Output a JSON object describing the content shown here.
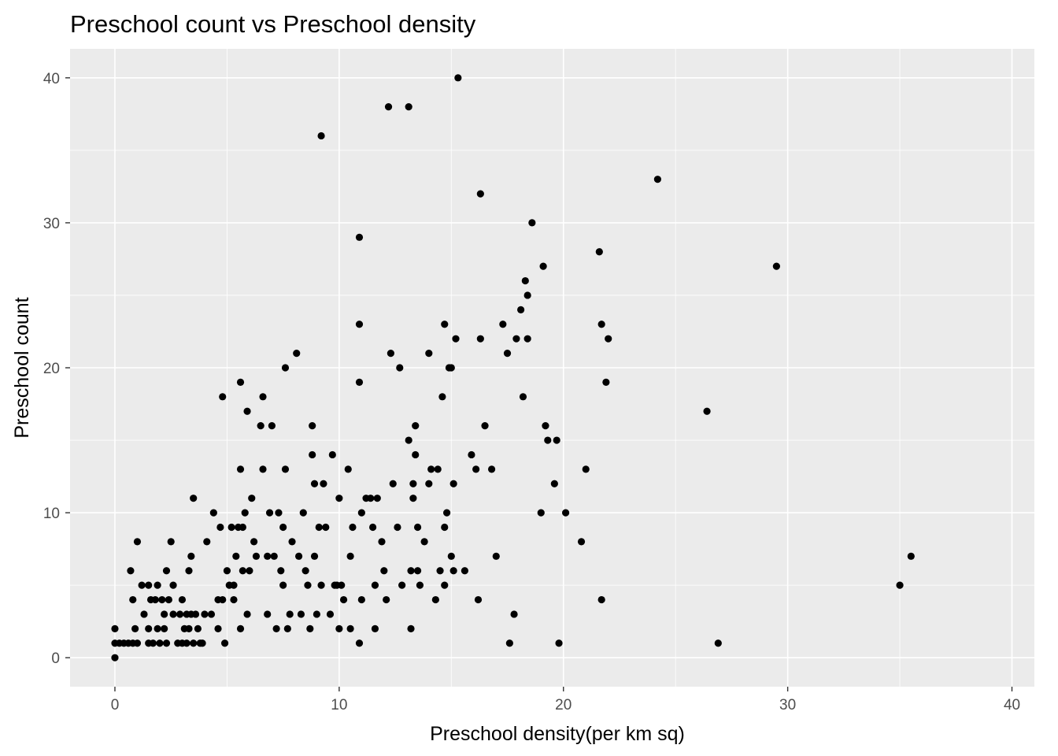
{
  "chart_data": {
    "type": "scatter",
    "title": "Preschool count vs Preschool density",
    "xlabel": "Preschool density(per km sq)",
    "ylabel": "Preschool count",
    "xlim": [
      -2,
      41
    ],
    "ylim": [
      -2,
      42
    ],
    "x_ticks": [
      0,
      10,
      20,
      30,
      40
    ],
    "y_ticks": [
      0,
      10,
      20,
      30,
      40
    ],
    "x_tick_labels": [
      "0",
      "10",
      "20",
      "30",
      "40"
    ],
    "y_tick_labels": [
      "0",
      "10",
      "20",
      "30",
      "40"
    ],
    "grid": true,
    "legend": "none",
    "background_color": "#ebebeb",
    "point_color": "#000000",
    "points": [
      [
        0.0,
        0
      ],
      [
        0.0,
        1
      ],
      [
        0.0,
        2
      ],
      [
        0.2,
        1
      ],
      [
        0.4,
        1
      ],
      [
        0.6,
        1
      ],
      [
        0.8,
        1
      ],
      [
        0.7,
        6
      ],
      [
        0.8,
        4
      ],
      [
        0.9,
        2
      ],
      [
        1.0,
        1
      ],
      [
        1.0,
        8
      ],
      [
        1.2,
        5
      ],
      [
        1.3,
        3
      ],
      [
        1.5,
        5
      ],
      [
        1.5,
        1
      ],
      [
        1.5,
        2
      ],
      [
        1.6,
        4
      ],
      [
        1.7,
        1
      ],
      [
        1.8,
        4
      ],
      [
        1.9,
        2
      ],
      [
        1.9,
        5
      ],
      [
        2.0,
        1
      ],
      [
        2.1,
        4
      ],
      [
        2.2,
        3
      ],
      [
        2.2,
        2
      ],
      [
        2.3,
        1
      ],
      [
        2.3,
        6
      ],
      [
        2.4,
        4
      ],
      [
        2.5,
        8
      ],
      [
        2.6,
        3
      ],
      [
        2.6,
        5
      ],
      [
        2.8,
        1
      ],
      [
        2.9,
        3
      ],
      [
        3.0,
        4
      ],
      [
        3.0,
        1
      ],
      [
        3.1,
        2
      ],
      [
        3.2,
        1
      ],
      [
        3.2,
        3
      ],
      [
        3.3,
        6
      ],
      [
        3.3,
        2
      ],
      [
        3.4,
        3
      ],
      [
        3.4,
        7
      ],
      [
        3.5,
        11
      ],
      [
        3.5,
        1
      ],
      [
        3.6,
        3
      ],
      [
        3.7,
        2
      ],
      [
        3.8,
        1
      ],
      [
        3.9,
        1
      ],
      [
        4.0,
        3
      ],
      [
        4.1,
        8
      ],
      [
        4.3,
        3
      ],
      [
        4.4,
        10
      ],
      [
        4.6,
        4
      ],
      [
        4.6,
        2
      ],
      [
        4.7,
        9
      ],
      [
        4.8,
        18
      ],
      [
        4.8,
        4
      ],
      [
        4.9,
        1
      ],
      [
        5.0,
        6
      ],
      [
        5.1,
        5
      ],
      [
        5.2,
        9
      ],
      [
        5.3,
        4
      ],
      [
        5.3,
        5
      ],
      [
        5.4,
        7
      ],
      [
        5.5,
        9
      ],
      [
        5.6,
        19
      ],
      [
        5.6,
        13
      ],
      [
        5.7,
        6
      ],
      [
        5.7,
        9
      ],
      [
        5.6,
        2
      ],
      [
        5.8,
        10
      ],
      [
        5.9,
        17
      ],
      [
        5.9,
        3
      ],
      [
        6.0,
        6
      ],
      [
        6.1,
        11
      ],
      [
        6.2,
        8
      ],
      [
        6.3,
        7
      ],
      [
        6.5,
        16
      ],
      [
        6.6,
        13
      ],
      [
        6.6,
        18
      ],
      [
        6.8,
        3
      ],
      [
        6.8,
        7
      ],
      [
        6.9,
        10
      ],
      [
        7.0,
        16
      ],
      [
        7.1,
        7
      ],
      [
        7.2,
        2
      ],
      [
        7.3,
        10
      ],
      [
        7.4,
        6
      ],
      [
        7.5,
        5
      ],
      [
        7.5,
        9
      ],
      [
        7.6,
        20
      ],
      [
        7.6,
        13
      ],
      [
        7.7,
        2
      ],
      [
        7.8,
        3
      ],
      [
        7.9,
        8
      ],
      [
        8.1,
        21
      ],
      [
        8.2,
        7
      ],
      [
        8.3,
        3
      ],
      [
        8.4,
        10
      ],
      [
        8.5,
        6
      ],
      [
        8.6,
        5
      ],
      [
        8.7,
        2
      ],
      [
        8.8,
        14
      ],
      [
        8.8,
        16
      ],
      [
        8.9,
        12
      ],
      [
        8.9,
        7
      ],
      [
        9.0,
        3
      ],
      [
        9.1,
        9
      ],
      [
        9.2,
        36
      ],
      [
        9.2,
        5
      ],
      [
        9.3,
        12
      ],
      [
        9.4,
        9
      ],
      [
        9.6,
        3
      ],
      [
        9.7,
        14
      ],
      [
        9.8,
        5
      ],
      [
        9.9,
        5
      ],
      [
        10.0,
        11
      ],
      [
        10.0,
        2
      ],
      [
        10.1,
        5
      ],
      [
        10.2,
        4
      ],
      [
        10.4,
        13
      ],
      [
        10.5,
        7
      ],
      [
        10.5,
        2
      ],
      [
        10.6,
        9
      ],
      [
        10.9,
        29
      ],
      [
        10.9,
        23
      ],
      [
        10.9,
        19
      ],
      [
        10.9,
        1
      ],
      [
        11.0,
        10
      ],
      [
        11.0,
        4
      ],
      [
        11.2,
        11
      ],
      [
        11.4,
        11
      ],
      [
        11.5,
        9
      ],
      [
        11.6,
        5
      ],
      [
        11.6,
        2
      ],
      [
        11.7,
        11
      ],
      [
        11.9,
        8
      ],
      [
        12.0,
        6
      ],
      [
        12.1,
        4
      ],
      [
        12.2,
        38
      ],
      [
        12.3,
        21
      ],
      [
        12.4,
        12
      ],
      [
        12.6,
        9
      ],
      [
        12.7,
        20
      ],
      [
        12.8,
        5
      ],
      [
        13.1,
        38
      ],
      [
        13.1,
        15
      ],
      [
        13.2,
        6
      ],
      [
        13.2,
        2
      ],
      [
        13.3,
        11
      ],
      [
        13.3,
        12
      ],
      [
        13.4,
        14
      ],
      [
        13.4,
        16
      ],
      [
        13.5,
        9
      ],
      [
        13.5,
        6
      ],
      [
        13.6,
        5
      ],
      [
        13.8,
        8
      ],
      [
        14.0,
        21
      ],
      [
        14.0,
        12
      ],
      [
        14.1,
        13
      ],
      [
        14.3,
        4
      ],
      [
        14.4,
        13
      ],
      [
        14.5,
        6
      ],
      [
        14.6,
        18
      ],
      [
        14.7,
        5
      ],
      [
        14.7,
        23
      ],
      [
        14.7,
        9
      ],
      [
        14.8,
        10
      ],
      [
        14.9,
        20
      ],
      [
        15.0,
        7
      ],
      [
        15.0,
        20
      ],
      [
        15.1,
        12
      ],
      [
        15.1,
        6
      ],
      [
        15.2,
        22
      ],
      [
        15.3,
        40
      ],
      [
        15.6,
        6
      ],
      [
        15.9,
        14
      ],
      [
        16.1,
        13
      ],
      [
        16.2,
        4
      ],
      [
        16.3,
        22
      ],
      [
        16.3,
        32
      ],
      [
        16.5,
        16
      ],
      [
        16.8,
        13
      ],
      [
        17.0,
        7
      ],
      [
        17.3,
        23
      ],
      [
        17.5,
        21
      ],
      [
        17.6,
        1
      ],
      [
        17.8,
        3
      ],
      [
        17.9,
        22
      ],
      [
        18.1,
        24
      ],
      [
        18.2,
        18
      ],
      [
        18.3,
        26
      ],
      [
        18.4,
        22
      ],
      [
        18.4,
        25
      ],
      [
        18.6,
        30
      ],
      [
        19.0,
        10
      ],
      [
        19.1,
        27
      ],
      [
        19.2,
        16
      ],
      [
        19.3,
        15
      ],
      [
        19.6,
        12
      ],
      [
        19.7,
        15
      ],
      [
        19.8,
        1
      ],
      [
        20.1,
        10
      ],
      [
        20.8,
        8
      ],
      [
        21.0,
        13
      ],
      [
        21.6,
        28
      ],
      [
        21.7,
        4
      ],
      [
        21.7,
        23
      ],
      [
        21.9,
        19
      ],
      [
        22.0,
        22
      ],
      [
        24.2,
        33
      ],
      [
        26.4,
        17
      ],
      [
        26.9,
        1
      ],
      [
        29.5,
        27
      ],
      [
        35.0,
        5
      ],
      [
        35.5,
        7
      ]
    ]
  }
}
